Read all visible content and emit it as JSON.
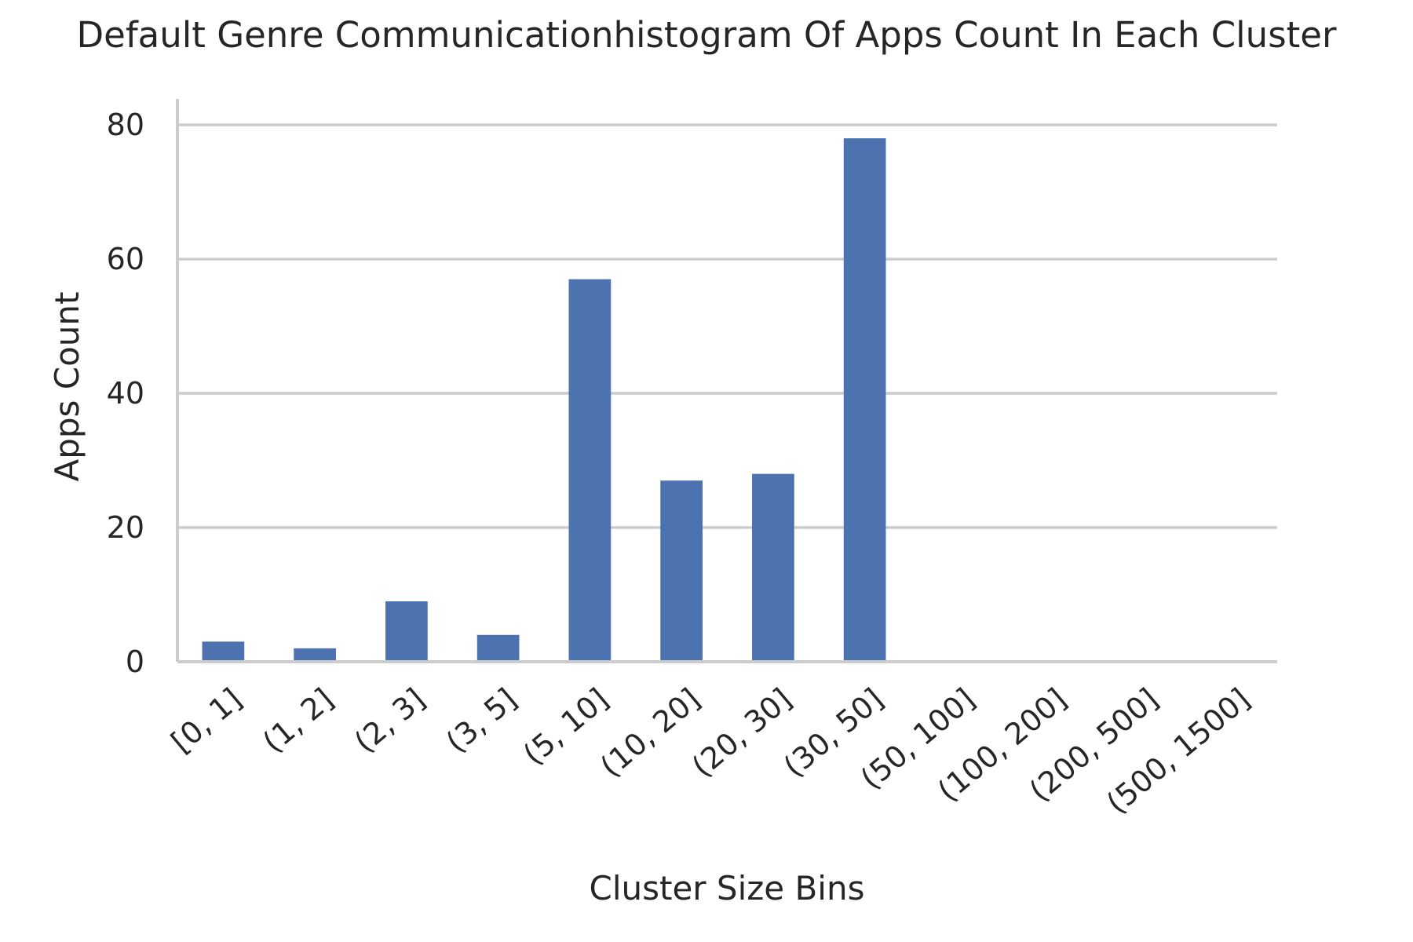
{
  "chart_data": {
    "type": "bar",
    "title": "Default Genre Communicationhistogram Of Apps Count In Each Cluster",
    "xlabel": "Cluster Size Bins",
    "ylabel": "Apps Count",
    "categories": [
      "[0, 1]",
      "(1, 2]",
      "(2, 3]",
      "(3, 5]",
      "(5, 10]",
      "(10, 20]",
      "(20, 30]",
      "(30, 50]",
      "(50, 100]",
      "(100, 200]",
      "(200, 500]",
      "(500, 1500]"
    ],
    "values": [
      3,
      2,
      9,
      4,
      57,
      27,
      28,
      78,
      0,
      0,
      0,
      0
    ],
    "ylim": [
      0,
      82
    ],
    "yticks": [
      0,
      20,
      40,
      60,
      80
    ],
    "grid": true,
    "bar_color": "#4c72b0",
    "grid_color": "#cccccc"
  }
}
